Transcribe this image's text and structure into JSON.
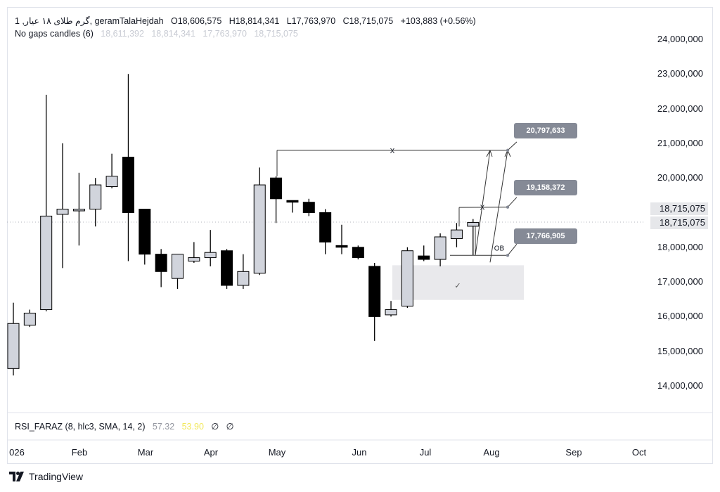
{
  "header": {
    "symbol": "1 ,گرم طلای ۱۸ عیار, geramTalaHejdah",
    "open": "O18,606,575",
    "high": "H18,814,341",
    "low": "L17,763,970",
    "close": "C18,715,075",
    "change": "+103,883 (+0.56%)"
  },
  "indicator_line": {
    "name": "No gaps candles (6)",
    "v1": "18,611,392",
    "v2": "18,814,341",
    "v3": "17,763,970",
    "v4": "18,715,075"
  },
  "rsi": {
    "name": "RSI_FARAZ (8, hlc3, SMA, 14, 2)",
    "value1": "57.32",
    "value2": "53.90",
    "value3": "∅",
    "value4": "∅"
  },
  "price_axis": {
    "labels": [
      "24,000,000",
      "23,000,000",
      "22,000,000",
      "21,000,000",
      "20,000,000",
      "18,000,000",
      "17,000,000",
      "16,000,000",
      "15,000,000",
      "14,000,000"
    ],
    "current_price_1": "18,715,075",
    "current_price_2": "18,715,075"
  },
  "time_axis": [
    "026",
    "Feb",
    "Mar",
    "Apr",
    "May",
    "Jun",
    "Jul",
    "Aug",
    "Sep",
    "Oct"
  ],
  "annotations": {
    "target_high": "20,797,633",
    "target_mid": "19,158,372",
    "target_low": "17,766,905",
    "x_label_1": "X",
    "x_label_2": "X",
    "ob_label": "OB",
    "check_mark": "✓"
  },
  "branding": {
    "name": "TradingView"
  },
  "colors": {
    "bull": "#d1d4dc",
    "bear": "#000000",
    "wick": "#000000",
    "zone": "#e9e9ec",
    "tag": "#858a96"
  },
  "chart_data": {
    "type": "candlestick",
    "y_unit": "price",
    "ylim": [
      13800000,
      24300000
    ],
    "candles": [
      {
        "o": 14500000,
        "h": 16400000,
        "l": 14300000,
        "c": 15800000
      },
      {
        "o": 15750000,
        "h": 16200000,
        "l": 15700000,
        "c": 16100000
      },
      {
        "o": 16200000,
        "h": 22400000,
        "l": 16150000,
        "c": 18900000
      },
      {
        "o": 18950000,
        "h": 21000000,
        "l": 17400000,
        "c": 19100000
      },
      {
        "o": 19050000,
        "h": 20150000,
        "l": 18050000,
        "c": 19100000
      },
      {
        "o": 19100000,
        "h": 20000000,
        "l": 18600000,
        "c": 19800000
      },
      {
        "o": 19750000,
        "h": 20700000,
        "l": 19700000,
        "c": 20050000
      },
      {
        "o": 20600000,
        "h": 23000000,
        "l": 17600000,
        "c": 19000000
      },
      {
        "o": 19100000,
        "h": 19050000,
        "l": 17500000,
        "c": 17800000
      },
      {
        "o": 17800000,
        "h": 17950000,
        "l": 16850000,
        "c": 17300000
      },
      {
        "o": 17100000,
        "h": 17800000,
        "l": 16800000,
        "c": 17800000
      },
      {
        "o": 17600000,
        "h": 18150000,
        "l": 17550000,
        "c": 17700000
      },
      {
        "o": 17700000,
        "h": 18500000,
        "l": 17450000,
        "c": 17850000
      },
      {
        "o": 17900000,
        "h": 17950000,
        "l": 16800000,
        "c": 16900000
      },
      {
        "o": 16900000,
        "h": 17800000,
        "l": 16800000,
        "c": 17300000
      },
      {
        "o": 17250000,
        "h": 20300000,
        "l": 17200000,
        "c": 19800000
      },
      {
        "o": 20000000,
        "h": 20050000,
        "l": 18700000,
        "c": 19400000
      },
      {
        "o": 19350000,
        "h": 19350000,
        "l": 19000000,
        "c": 19300000
      },
      {
        "o": 19300000,
        "h": 19400000,
        "l": 18900000,
        "c": 19000000
      },
      {
        "o": 19000000,
        "h": 19100000,
        "l": 17800000,
        "c": 18150000
      },
      {
        "o": 18050000,
        "h": 18650000,
        "l": 17800000,
        "c": 18000000
      },
      {
        "o": 18000000,
        "h": 18050000,
        "l": 17650000,
        "c": 17700000
      },
      {
        "o": 17450000,
        "h": 17550000,
        "l": 15300000,
        "c": 16000000
      },
      {
        "o": 16050000,
        "h": 16450000,
        "l": 16000000,
        "c": 16200000
      },
      {
        "o": 16300000,
        "h": 18000000,
        "l": 16250000,
        "c": 17900000
      },
      {
        "o": 17750000,
        "h": 18050000,
        "l": 17600000,
        "c": 17650000
      },
      {
        "o": 17650000,
        "h": 18400000,
        "l": 17450000,
        "c": 18300000
      },
      {
        "o": 18250000,
        "h": 18700000,
        "l": 18000000,
        "c": 18500000
      },
      {
        "o": 18606575,
        "h": 18814341,
        "l": 17763970,
        "c": 18715075
      }
    ]
  }
}
